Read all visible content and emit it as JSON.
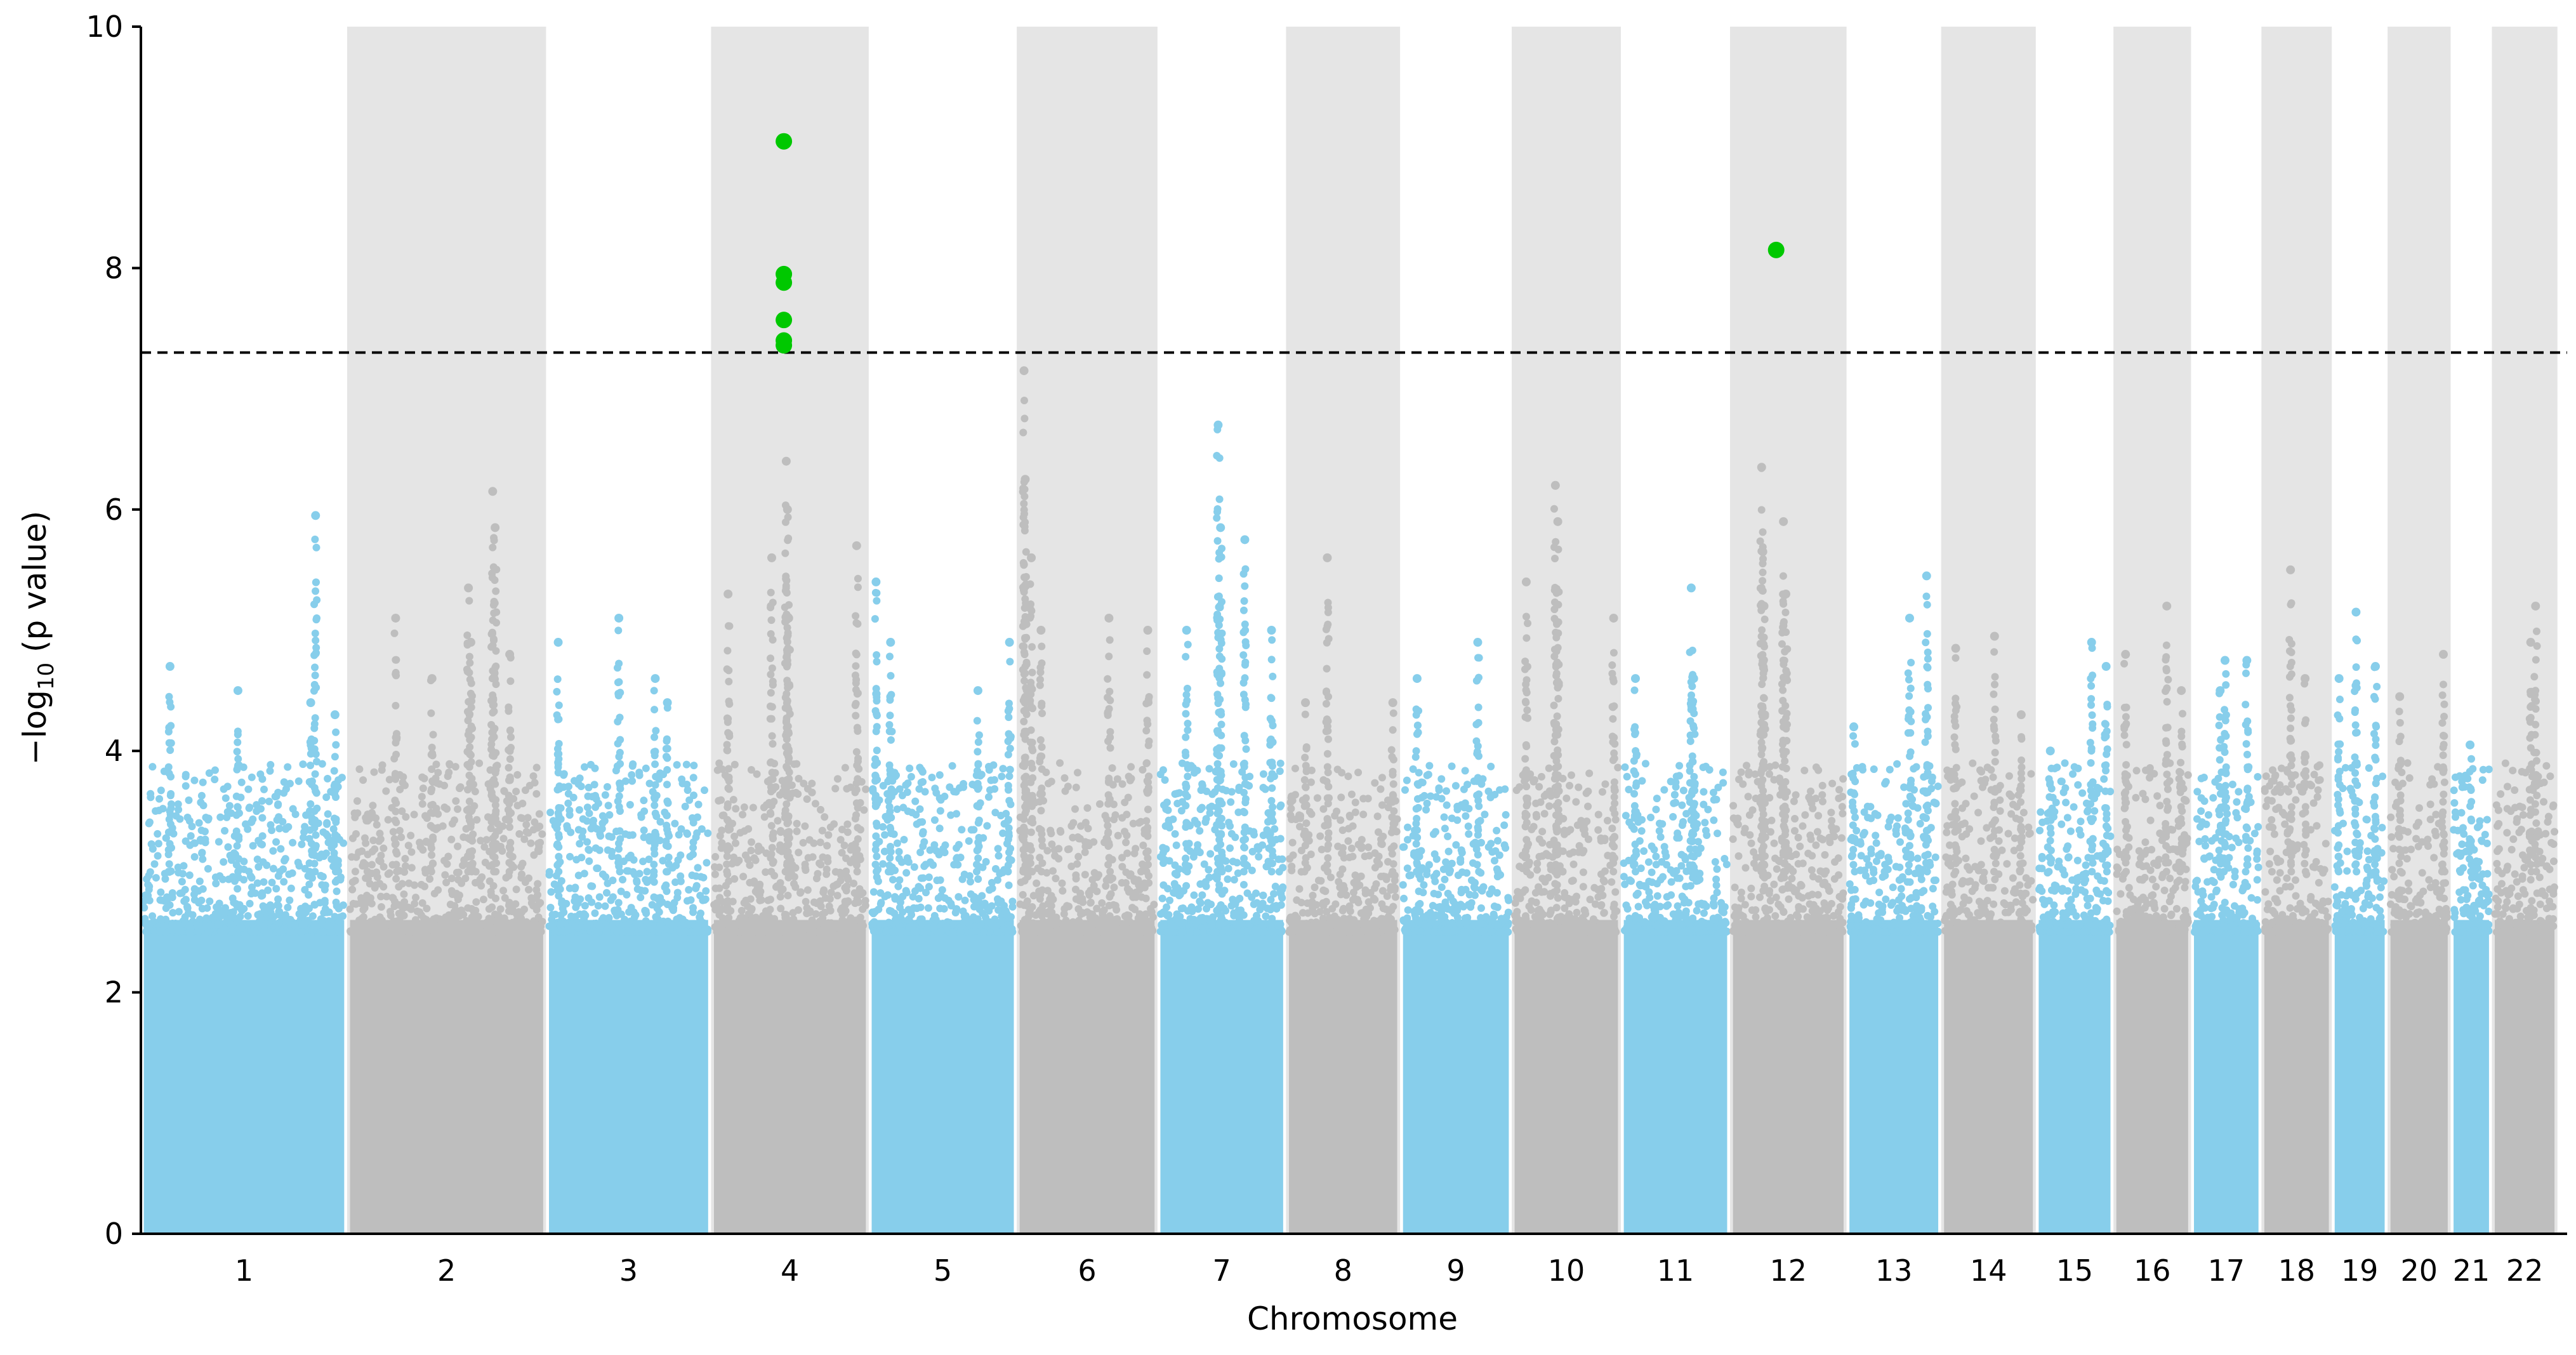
{
  "chart_data": {
    "type": "scatter",
    "subtype": "manhattan",
    "title": "",
    "xlabel": "Chromosome",
    "ylabel_main": "−log",
    "ylabel_sub": "10",
    "ylabel_tail": " (p value)",
    "ylim": [
      0,
      10
    ],
    "yticks": [
      0,
      2,
      4,
      6,
      8,
      10
    ],
    "significance_threshold": 7.3,
    "colors": {
      "odd": "#87CEEB",
      "even": "#BEBEBE",
      "band": "#E5E5E5",
      "significant": "#00C800",
      "threshold": "#000000"
    },
    "chromosomes": [
      {
        "label": "1",
        "start": 0,
        "end": 8.5,
        "max": 5.95,
        "peaks": [
          [
            1.2,
            4.7
          ],
          [
            4.0,
            4.5
          ],
          [
            7.0,
            4.4
          ],
          [
            7.2,
            5.95
          ],
          [
            8.0,
            4.3
          ]
        ]
      },
      {
        "label": "2",
        "start": 8.5,
        "end": 16.7,
        "max": 6.15,
        "peaks": [
          [
            2.0,
            5.1
          ],
          [
            3.5,
            4.6
          ],
          [
            5.0,
            5.35
          ],
          [
            5.1,
            4.9
          ],
          [
            6.0,
            6.15
          ],
          [
            6.1,
            5.85
          ],
          [
            6.7,
            4.8
          ]
        ]
      },
      {
        "label": "3",
        "start": 16.7,
        "end": 23.5,
        "max": 5.1,
        "peaks": [
          [
            0.5,
            4.9
          ],
          [
            3.0,
            5.1
          ],
          [
            4.5,
            4.6
          ],
          [
            5.0,
            4.4
          ]
        ]
      },
      {
        "label": "4",
        "start": 23.5,
        "end": 30.0,
        "max": 6.4,
        "peaks": [
          [
            0.7,
            5.3
          ],
          [
            2.5,
            5.6
          ],
          [
            3.1,
            6.4
          ],
          [
            3.15,
            6.0
          ],
          [
            3.2,
            5.1
          ],
          [
            6.0,
            5.7
          ]
        ]
      },
      {
        "label": "5",
        "start": 30.0,
        "end": 36.1,
        "max": 5.4,
        "peaks": [
          [
            0.3,
            5.4
          ],
          [
            0.9,
            4.9
          ],
          [
            4.5,
            4.5
          ],
          [
            5.8,
            4.9
          ]
        ]
      },
      {
        "label": "6",
        "start": 36.1,
        "end": 41.9,
        "max": 7.15,
        "peaks": [
          [
            0.3,
            7.15
          ],
          [
            0.35,
            6.25
          ],
          [
            0.6,
            5.6
          ],
          [
            1.0,
            5.0
          ],
          [
            3.8,
            5.1
          ],
          [
            5.4,
            5.0
          ]
        ]
      },
      {
        "label": "7",
        "start": 41.9,
        "end": 47.2,
        "max": 6.7,
        "peaks": [
          [
            1.2,
            5.0
          ],
          [
            2.5,
            6.7
          ],
          [
            2.6,
            5.85
          ],
          [
            3.6,
            5.75
          ],
          [
            4.7,
            5.0
          ]
        ]
      },
      {
        "label": "8",
        "start": 47.2,
        "end": 51.9,
        "max": 5.6,
        "peaks": [
          [
            0.8,
            4.4
          ],
          [
            1.7,
            5.6
          ],
          [
            4.4,
            4.4
          ]
        ]
      },
      {
        "label": "9",
        "start": 51.9,
        "end": 56.5,
        "max": 4.9,
        "peaks": [
          [
            0.7,
            4.6
          ],
          [
            3.2,
            4.9
          ]
        ]
      },
      {
        "label": "10",
        "start": 56.5,
        "end": 61.0,
        "max": 6.2,
        "peaks": [
          [
            0.6,
            5.4
          ],
          [
            1.8,
            6.2
          ],
          [
            1.9,
            5.9
          ],
          [
            4.2,
            5.1
          ]
        ]
      },
      {
        "label": "11",
        "start": 61.0,
        "end": 65.5,
        "max": 5.35,
        "peaks": [
          [
            0.6,
            4.6
          ],
          [
            2.9,
            5.35
          ],
          [
            3.0,
            4.6
          ]
        ]
      },
      {
        "label": "12",
        "start": 65.5,
        "end": 70.3,
        "max": 6.35,
        "peaks": [
          [
            1.3,
            6.35
          ],
          [
            1.35,
            5.65
          ],
          [
            1.4,
            5.2
          ],
          [
            2.2,
            5.9
          ],
          [
            2.3,
            5.3
          ]
        ]
      },
      {
        "label": "13",
        "start": 70.3,
        "end": 74.2,
        "max": 5.45,
        "peaks": [
          [
            0.3,
            4.2
          ],
          [
            2.6,
            5.1
          ],
          [
            3.3,
            5.45
          ]
        ]
      },
      {
        "label": "14",
        "start": 74.2,
        "end": 78.1,
        "max": 4.95,
        "peaks": [
          [
            0.6,
            4.85
          ],
          [
            2.2,
            4.95
          ],
          [
            3.3,
            4.3
          ]
        ]
      },
      {
        "label": "15",
        "start": 78.1,
        "end": 81.3,
        "max": 4.9,
        "peaks": [
          [
            0.6,
            4.0
          ],
          [
            2.3,
            4.9
          ],
          [
            2.9,
            4.7
          ]
        ]
      },
      {
        "label": "16",
        "start": 81.3,
        "end": 84.5,
        "max": 5.2,
        "peaks": [
          [
            0.5,
            4.8
          ],
          [
            2.2,
            5.2
          ],
          [
            2.8,
            4.5
          ]
        ]
      },
      {
        "label": "17",
        "start": 84.5,
        "end": 87.4,
        "max": 4.75,
        "peaks": [
          [
            1.2,
            4.5
          ],
          [
            1.4,
            4.75
          ],
          [
            2.3,
            4.75
          ]
        ]
      },
      {
        "label": "18",
        "start": 87.4,
        "end": 90.3,
        "max": 5.5,
        "peaks": [
          [
            1.2,
            5.5
          ],
          [
            1.8,
            4.6
          ]
        ]
      },
      {
        "label": "19",
        "start": 90.3,
        "end": 92.6,
        "max": 5.15,
        "peaks": [
          [
            1.0,
            5.15
          ],
          [
            0.3,
            4.6
          ],
          [
            1.8,
            4.7
          ]
        ]
      },
      {
        "label": "20",
        "start": 92.6,
        "end": 95.2,
        "max": 4.8,
        "peaks": [
          [
            0.5,
            4.45
          ],
          [
            2.3,
            4.8
          ]
        ]
      },
      {
        "label": "21",
        "start": 95.2,
        "end": 96.9,
        "max": 4.05,
        "peaks": [
          [
            0.8,
            4.05
          ]
        ]
      },
      {
        "label": "22",
        "start": 96.9,
        "end": 99.6,
        "max": 5.2,
        "peaks": [
          [
            1.8,
            5.2
          ],
          [
            1.6,
            4.9
          ]
        ]
      }
    ],
    "significant_points": [
      {
        "chromosome": "4",
        "x": 26.5,
        "y": 9.05
      },
      {
        "chromosome": "4",
        "x": 26.5,
        "y": 7.95
      },
      {
        "chromosome": "4",
        "x": 26.5,
        "y": 7.88
      },
      {
        "chromosome": "4",
        "x": 26.5,
        "y": 7.57
      },
      {
        "chromosome": "4",
        "x": 26.5,
        "y": 7.4
      },
      {
        "chromosome": "4",
        "x": 26.5,
        "y": 7.36
      },
      {
        "chromosome": "12",
        "x": 67.4,
        "y": 8.15
      }
    ]
  }
}
